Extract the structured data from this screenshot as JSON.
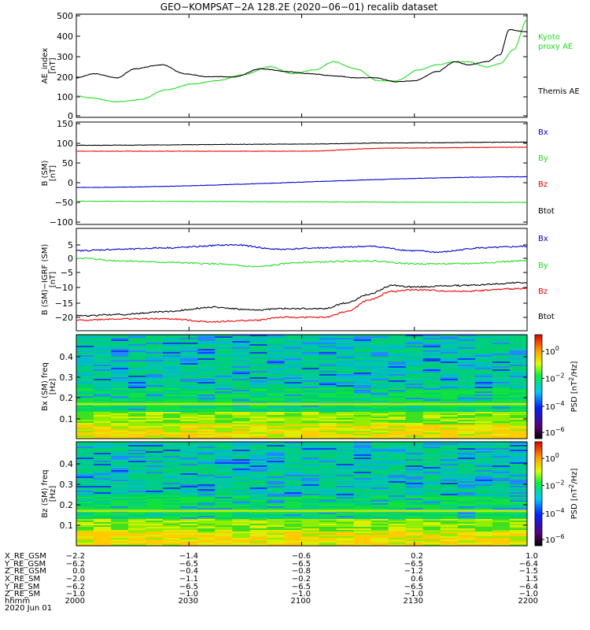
{
  "title": "GEO−KOMPSAT−2A 128.2E (2020−06−01) recalib dataset",
  "colors": {
    "black": "#000000",
    "green": "#22dd22",
    "red": "#ee0000",
    "blue": "#0000cc"
  },
  "chart_data": [
    {
      "type": "line",
      "ylabel": "AE_index [nT]",
      "ylim": [
        0,
        500
      ],
      "yticks": [
        "0",
        "100",
        "200",
        "300",
        "400",
        "500"
      ],
      "series": [
        {
          "name": "Kyoto proxy AE",
          "color": "green",
          "x": [
            0,
            0.03,
            0.09,
            0.14,
            0.2,
            0.26,
            0.31,
            0.37,
            0.43,
            0.48,
            0.53,
            0.57,
            0.62,
            0.67,
            0.71,
            0.76,
            0.8,
            0.84,
            0.87,
            0.91,
            0.94,
            0.97,
            1.0
          ],
          "y": [
            100,
            90,
            70,
            80,
            130,
            160,
            175,
            205,
            245,
            210,
            230,
            270,
            235,
            175,
            175,
            230,
            255,
            270,
            270,
            245,
            260,
            330,
            480
          ]
        },
        {
          "name": "Themis AE",
          "color": "black",
          "x": [
            0,
            0.04,
            0.09,
            0.13,
            0.19,
            0.24,
            0.29,
            0.35,
            0.41,
            0.47,
            0.52,
            0.57,
            0.62,
            0.66,
            0.71,
            0.75,
            0.8,
            0.84,
            0.87,
            0.91,
            0.94,
            0.96,
            1.0
          ],
          "y": [
            190,
            210,
            190,
            235,
            255,
            210,
            195,
            195,
            235,
            220,
            210,
            200,
            190,
            190,
            170,
            175,
            220,
            270,
            255,
            270,
            305,
            430,
            420
          ]
        }
      ]
    },
    {
      "type": "line",
      "ylabel": "B (SM) [nT]",
      "ylim": [
        -100,
        150
      ],
      "yticks": [
        "−100",
        "−50",
        "0",
        "50",
        "100",
        "150"
      ],
      "series": [
        {
          "name": "Bx",
          "color": "blue",
          "x": [
            0,
            1
          ],
          "y": [
            -12,
            15
          ]
        },
        {
          "name": "By",
          "color": "green",
          "x": [
            0,
            1
          ],
          "y": [
            -47,
            -50
          ]
        },
        {
          "name": "Bz",
          "color": "red",
          "x": [
            0,
            0.5,
            0.7,
            1
          ],
          "y": [
            80,
            80,
            88,
            90
          ]
        },
        {
          "name": "Btot",
          "color": "black",
          "x": [
            0,
            0.5,
            0.7,
            1
          ],
          "y": [
            95,
            98,
            101,
            103
          ]
        }
      ]
    },
    {
      "type": "line",
      "ylabel": "B (SM)−IGRF (SM) [nT]",
      "ylim": [
        -22,
        8
      ],
      "yticks": [
        "−20",
        "−15",
        "−10",
        "−5",
        "0",
        "5"
      ],
      "series": [
        {
          "name": "Bx",
          "color": "blue",
          "x": [
            0,
            0.1,
            0.2,
            0.35,
            0.45,
            0.55,
            0.65,
            0.75,
            0.8,
            0.9,
            1.0
          ],
          "y": [
            3,
            3.5,
            4,
            5,
            3.5,
            4,
            4.5,
            3,
            2.5,
            4,
            4.5
          ]
        },
        {
          "name": "By",
          "color": "green",
          "x": [
            0,
            0.1,
            0.2,
            0.3,
            0.4,
            0.5,
            0.65,
            0.75,
            0.85,
            1.0
          ],
          "y": [
            0.5,
            -0.5,
            -1,
            -1.5,
            -2.5,
            -1,
            -0.5,
            -1.5,
            -1.5,
            -0.5
          ]
        },
        {
          "name": "Bz",
          "color": "red",
          "x": [
            0,
            0.1,
            0.2,
            0.3,
            0.4,
            0.45,
            0.55,
            0.6,
            0.65,
            0.7,
            0.75,
            0.85,
            1.0
          ],
          "y": [
            -21,
            -20.5,
            -20.5,
            -21.5,
            -21,
            -20,
            -20,
            -18,
            -14,
            -11,
            -10.5,
            -11,
            -10
          ]
        },
        {
          "name": "Btot",
          "color": "black",
          "x": [
            0,
            0.1,
            0.2,
            0.3,
            0.4,
            0.45,
            0.55,
            0.6,
            0.65,
            0.7,
            0.75,
            0.85,
            1.0
          ],
          "y": [
            -19.5,
            -19,
            -18,
            -16.5,
            -17.5,
            -17,
            -17,
            -15,
            -12,
            -9,
            -9.5,
            -9,
            -8
          ]
        }
      ]
    },
    {
      "type": "heatmap",
      "ylabel": "Bx (SM) freq [Hz]",
      "yticks": [
        "0.1",
        "0.2",
        "0.3",
        "0.4"
      ],
      "cbar_label": "PSD [nT^2/Hz]",
      "cbar_ticks": [
        "10^0",
        "10^−2",
        "10^−4",
        "10^−6"
      ]
    },
    {
      "type": "heatmap",
      "ylabel": "Bz (SM) freq [Hz]",
      "yticks": [
        "0.1",
        "0.2",
        "0.3",
        "0.4"
      ],
      "cbar_label": "PSD [nT^2/Hz]",
      "cbar_ticks": [
        "10^0",
        "10^−2",
        "10^−4",
        "10^−6"
      ]
    }
  ],
  "legends": [
    [
      {
        "text": "Kyoto",
        "color": "green"
      },
      {
        "text": "proxy AE",
        "color": "green"
      },
      {
        "text": "Themis AE",
        "color": "black"
      }
    ],
    [
      {
        "text": "Bx",
        "color": "blue"
      },
      {
        "text": "By",
        "color": "green"
      },
      {
        "text": "Bz",
        "color": "red"
      },
      {
        "text": "Btot",
        "color": "black"
      }
    ],
    [
      {
        "text": "Bx",
        "color": "blue"
      },
      {
        "text": "By",
        "color": "green"
      },
      {
        "text": "Bz",
        "color": "red"
      },
      {
        "text": "Btot",
        "color": "black"
      }
    ]
  ],
  "ephemeris": {
    "labels": [
      "X_RE_GSM",
      "Y_RE_GSM",
      "Z_RE_GSM",
      "X_RE_SM",
      "Y_RE_SM",
      "Z_RE_SM",
      "hhmm",
      "2020 Jun 01"
    ],
    "columns": [
      [
        "−2.2",
        "−6.2",
        "0.0",
        "−2.0",
        "−6.2",
        "−1.0",
        "2000"
      ],
      [
        "−1.4",
        "−6.5",
        "−0.4",
        "−1.1",
        "−6.5",
        "−1.0",
        "2030"
      ],
      [
        "−0.6",
        "−6.5",
        "−0.8",
        "−0.2",
        "−6.5",
        "−1.0",
        "2100"
      ],
      [
        "0.2",
        "−6.5",
        "−1.2",
        "0.6",
        "−6.5",
        "−1.0",
        "2130"
      ],
      [
        "1.0",
        "−6.4",
        "−1.5",
        "1.5",
        "−6.4",
        "−1.0",
        "2200"
      ]
    ]
  }
}
